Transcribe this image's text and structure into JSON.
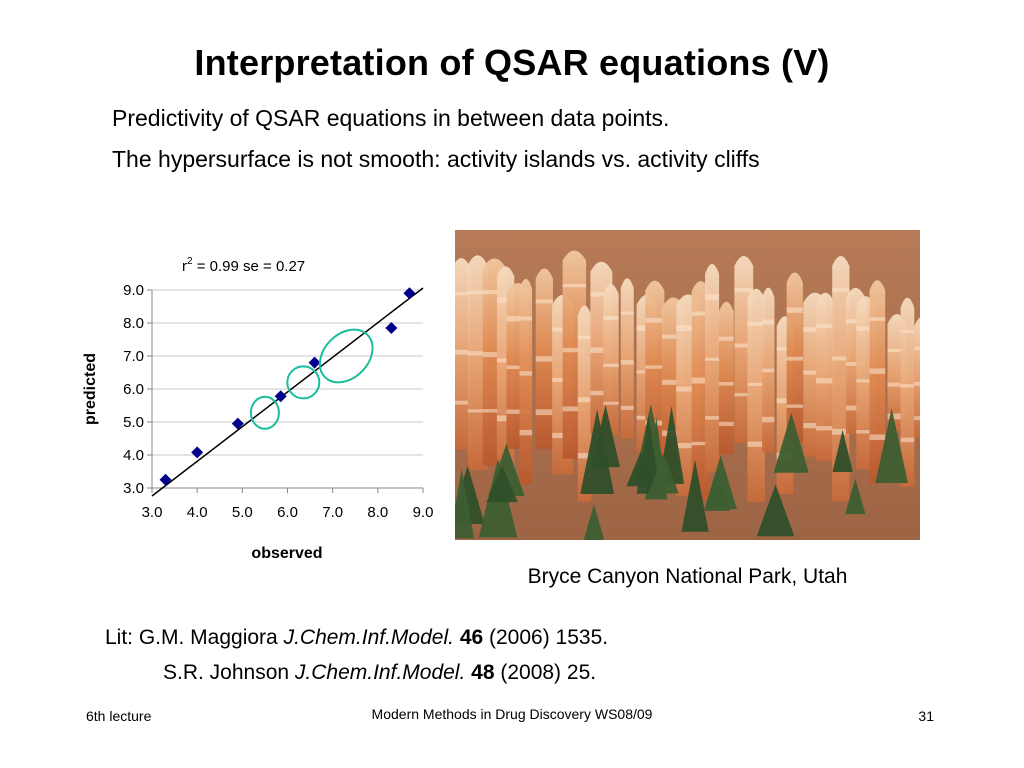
{
  "slide": {
    "title": "Interpretation of QSAR equations (V)",
    "subtitle_1": "Predictivity of QSAR equations in between data points.",
    "subtitle_2": "The hypersurface is not smooth: activity islands vs. activity cliffs"
  },
  "chart_data": {
    "type": "scatter",
    "stats_r": "r",
    "stats_sup": "2",
    "stats_rest": " = 0.99  se = 0.27",
    "xlabel": "observed",
    "ylabel": "predicted",
    "xlim": [
      3.0,
      9.0
    ],
    "ylim": [
      3.0,
      9.0
    ],
    "x_ticks": [
      "3.0",
      "4.0",
      "5.0",
      "6.0",
      "7.0",
      "8.0",
      "9.0"
    ],
    "y_ticks": [
      "3.0",
      "4.0",
      "5.0",
      "6.0",
      "7.0",
      "8.0",
      "9.0"
    ],
    "grid": "horizontal",
    "points": [
      {
        "x": 3.3,
        "y": 3.25
      },
      {
        "x": 4.0,
        "y": 4.08
      },
      {
        "x": 4.9,
        "y": 4.95
      },
      {
        "x": 5.85,
        "y": 5.78
      },
      {
        "x": 6.6,
        "y": 6.8
      },
      {
        "x": 8.3,
        "y": 7.85
      },
      {
        "x": 8.7,
        "y": 8.9
      }
    ],
    "regression_line": {
      "x": [
        3.0,
        9.0
      ],
      "y": [
        3.0,
        9.0
      ]
    },
    "highlight_circles": [
      {
        "x": 5.5,
        "y": 5.28
      },
      {
        "x": 6.35,
        "y": 6.2
      },
      {
        "x": 7.3,
        "y": 7.0
      }
    ],
    "marker_color": "#00008b",
    "circle_color": "#1abc9c"
  },
  "photo": {
    "caption": "Bryce Canyon National Park, Utah"
  },
  "literature": {
    "line1": {
      "prefix": "Lit: G.M. Maggiora ",
      "journal": "J.Chem.Inf.Model.",
      "volume": "46",
      "rest": " (2006) 1535."
    },
    "line2": {
      "prefix": "S.R. Johnson ",
      "journal": "J.Chem.Inf.Model.",
      "volume": "48",
      "rest": " (2008) 25."
    }
  },
  "footer": {
    "left": "6th lecture",
    "center": "Modern Methods in Drug Discovery WS08/09",
    "page": "31"
  }
}
